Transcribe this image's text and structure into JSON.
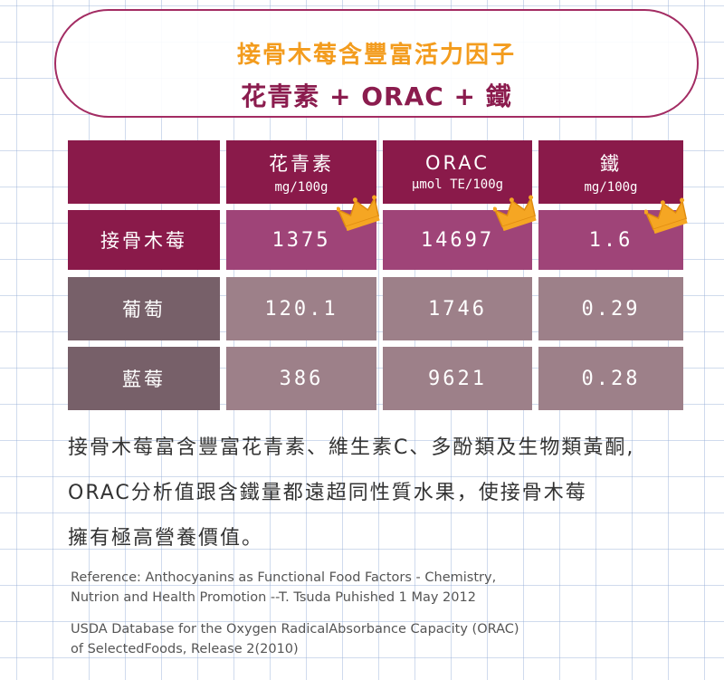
{
  "title": {
    "line1": "接骨木莓含豐富活力因子",
    "line2": "花青素 + ORAC + 鐵"
  },
  "table": {
    "columns": [
      {
        "name": "花青素",
        "unit": "mg/100g"
      },
      {
        "name": "ORAC",
        "unit": "µmol TE/100g"
      },
      {
        "name": "鐵",
        "unit": "mg/100g"
      }
    ],
    "rows": [
      {
        "label": "接骨木莓",
        "values": [
          "1375",
          "14697",
          "1.6"
        ]
      },
      {
        "label": "葡萄",
        "values": [
          "120.1",
          "1746",
          "0.29"
        ]
      },
      {
        "label": "藍莓",
        "values": [
          "386",
          "9621",
          "0.28"
        ]
      }
    ]
  },
  "body": {
    "line1": "接骨木莓富含豐富花青素、維生素C、多酚類及生物類黃酮,",
    "line2": "ORAC分析值跟含鐵量都遠超同性質水果，使接骨木莓",
    "line3": "擁有極高營養價值。"
  },
  "references": {
    "ref1_line1": "Reference: Anthocyanins as Functional Food Factors - Chemistry,",
    "ref1_line2": "Nutrion and Health Promotion --T. Tsuda Puhished 1 May 2012",
    "ref2_line1": "USDA Database for the Oxygen RadicalAbsorbance Capacity (ORAC)",
    "ref2_line2": "of SelectedFoods, Release 2(2010)"
  },
  "colors": {
    "header": "#8a1a4a",
    "highlight_row": "#9f4478",
    "other_label": "#776069",
    "other_values": "#9d8089",
    "title_orange": "#f39c1e",
    "title_purple": "#8b1c4e",
    "crown": "#f5a623"
  },
  "icons": [
    "crown-icon"
  ]
}
